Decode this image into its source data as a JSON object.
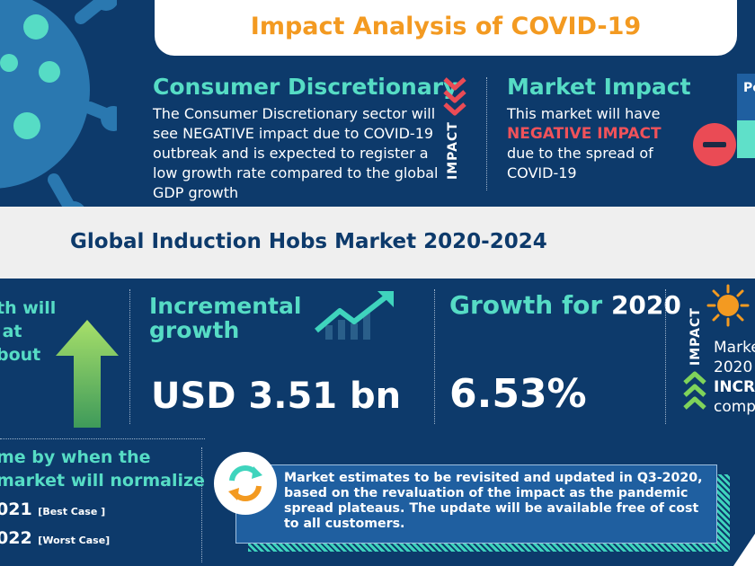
{
  "header": {
    "title": "Impact Analysis of COVID-19"
  },
  "consumer_discretionary": {
    "heading": "Consumer Discretionary",
    "body": "The Consumer Discretionary sector will see NEGATIVE impact due to COVID-19 outbreak and is expected to register a low growth rate compared to the global GDP growth",
    "impact_label": "IMPACT"
  },
  "market_impact": {
    "heading": "Market Impact",
    "line1": "This market will have",
    "emphasis": "NEGATIVE IMPACT",
    "line2": "due to the spread of COVID-19",
    "peek_label": "Pe"
  },
  "market_title": "Global Induction Hobs Market 2020-2024",
  "left_cut": {
    "text": "th will\n at\nbout"
  },
  "incremental": {
    "heading": "Incremental growth",
    "value": "USD 3.51 bn"
  },
  "growth": {
    "heading_a": "Growth for ",
    "heading_b": "2020",
    "value": "6.53%"
  },
  "right_impact": {
    "label": "IMPACT",
    "line1": "Marke",
    "line2": "2020",
    "line3": "INCR",
    "line4": "comp"
  },
  "timeframe": {
    "text": "me by when the\nmarket will normalize",
    "best_year": "021",
    "best_label": "[Best Case ]",
    "worst_year": "022",
    "worst_label": "[Worst Case]"
  },
  "note": {
    "text": "Market estimates to be revisited and updated in Q3-2020, based on the revaluation of the impact as the pandemic spread plateaus. The update will be available free of cost to all customers."
  },
  "colors": {
    "navy": "#0d3a6b",
    "teal": "#56dcc5",
    "orange": "#f39a21",
    "red": "#ea4b55",
    "green": "#7fd35a"
  },
  "icons": [
    "virus-graphic",
    "chevron-down-icon",
    "minus-circle-icon",
    "up-arrow-icon",
    "trend-up-icon",
    "sun-icon",
    "chevron-up-icon",
    "refresh-icon"
  ]
}
